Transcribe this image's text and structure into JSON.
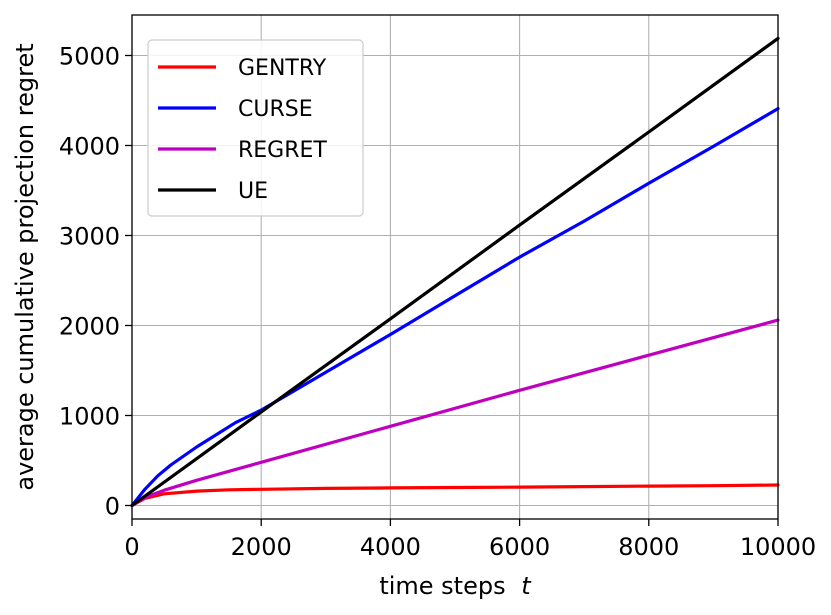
{
  "chart_data": {
    "type": "line",
    "xlabel": "time steps",
    "xlabel_var": "t",
    "ylabel": "average cumulative projection regret",
    "xlim": [
      0,
      10000
    ],
    "ylim": [
      -150,
      5450
    ],
    "xticks": [
      0,
      2000,
      4000,
      6000,
      8000,
      10000
    ],
    "yticks": [
      0,
      1000,
      2000,
      3000,
      4000,
      5000
    ],
    "grid": true,
    "legend_position": "top-left",
    "series": [
      {
        "name": "GENTRY",
        "color": "#ff0000",
        "x": [
          0,
          200,
          500,
          1000,
          1500,
          2000,
          3000,
          4000,
          5000,
          6000,
          7000,
          8000,
          9000,
          10000
        ],
        "y": [
          0,
          80,
          130,
          160,
          175,
          180,
          190,
          195,
          200,
          205,
          210,
          215,
          220,
          228
        ]
      },
      {
        "name": "CURSE",
        "color": "#0000ff",
        "x": [
          0,
          200,
          400,
          600,
          1000,
          1600,
          2000,
          3000,
          4000,
          5000,
          6000,
          7000,
          8000,
          9000,
          10000
        ],
        "y": [
          0,
          180,
          330,
          450,
          650,
          920,
          1060,
          1480,
          1900,
          2330,
          2760,
          3160,
          3580,
          3990,
          4410
        ]
      },
      {
        "name": "REGRET",
        "color": "#bf00bf",
        "x": [
          0,
          200,
          500,
          1000,
          2000,
          4000,
          6000,
          8000,
          10000
        ],
        "y": [
          0,
          90,
          170,
          280,
          480,
          880,
          1280,
          1670,
          2060
        ]
      },
      {
        "name": "UE",
        "color": "#000000",
        "x": [
          0,
          2000,
          4000,
          6000,
          8000,
          10000
        ],
        "y": [
          0,
          1040,
          2075,
          3115,
          4150,
          5190
        ]
      }
    ]
  }
}
